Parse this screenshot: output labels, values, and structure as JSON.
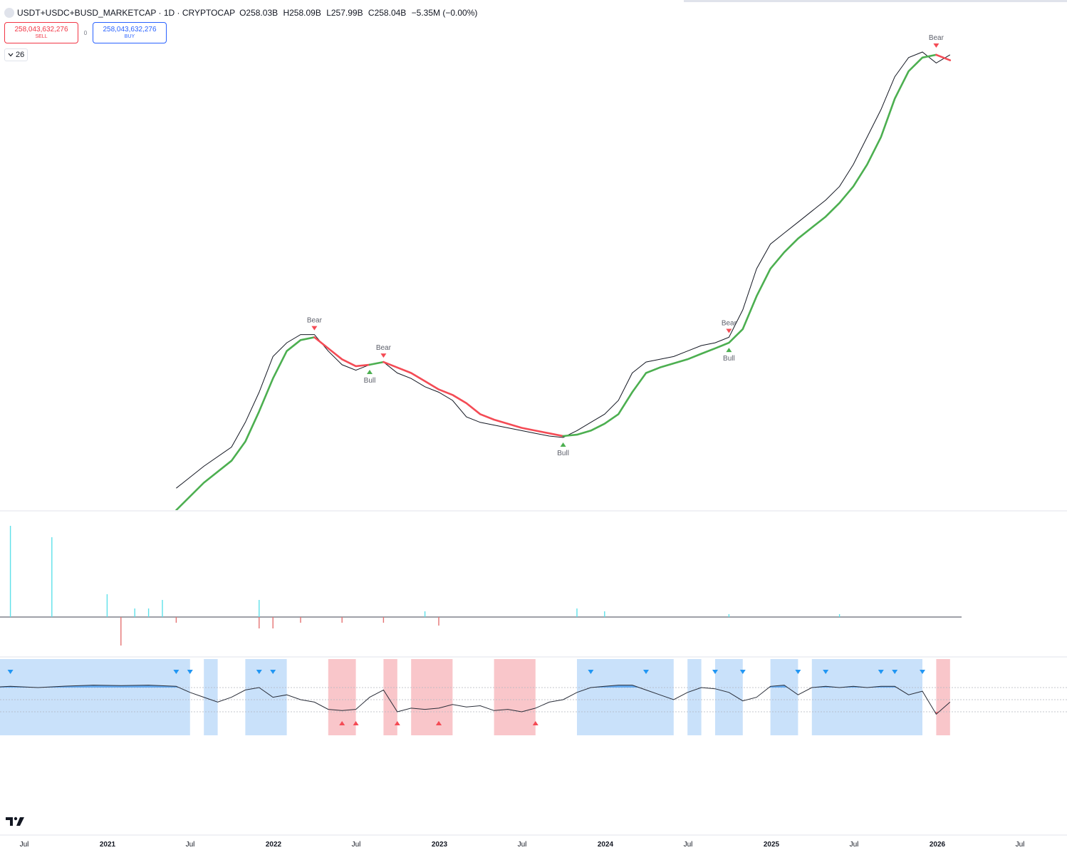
{
  "header": {
    "symbol": "USDT+USDC+BUSD_MARKETCAP · 1D · CRYPTOCAP",
    "open": "O258.03B",
    "high": "H258.09B",
    "low": "L257.99B",
    "close": "C258.04B",
    "change": "−5.35M (−0.00%)"
  },
  "trade": {
    "sell_price": "258,043,632,276",
    "sell_label": "SELL",
    "spread": "0",
    "buy_price": "258,043,632,276",
    "buy_label": "BUY"
  },
  "indicators_toggle": {
    "count": "26",
    "icon": "chevron-down-icon"
  },
  "logo": {
    "icon": "tradingview-logo"
  },
  "colors": {
    "bull": "#4caf50",
    "bear": "#f44b55",
    "price": "#131722",
    "osc_blue_bg": "#c9e1fa",
    "osc_red_bg": "#f9c6ca",
    "osc_blue_fill": "#64a9ee",
    "osc_red_fill": "#f07c85",
    "volume_up": "#5ee0ea",
    "volume_down": "#e57373"
  },
  "chart_data": [
    {
      "type": "line",
      "panel": "main",
      "x_axis_labels": [
        "Jul",
        "2021",
        "Jul",
        "2022",
        "Jul",
        "2023",
        "Jul",
        "2024",
        "Jul",
        "2025",
        "Jul",
        "2026",
        "Jul"
      ],
      "series": [
        {
          "role": "price",
          "points": [
            [
              "2021-06",
              100
            ],
            [
              "2021-08",
              108
            ],
            [
              "2021-10",
              115
            ],
            [
              "2021-11",
              124
            ],
            [
              "2021-12",
              135
            ],
            [
              "2022-01",
              148
            ],
            [
              "2022-02",
              153
            ],
            [
              "2022-03",
              156
            ],
            [
              "2022-04",
              156
            ],
            [
              "2022-05",
              150
            ],
            [
              "2022-06",
              145
            ],
            [
              "2022-07",
              143
            ],
            [
              "2022-08",
              145
            ],
            [
              "2022-09",
              146
            ],
            [
              "2022-10",
              142
            ],
            [
              "2022-11",
              140
            ],
            [
              "2022-12",
              137
            ],
            [
              "2023-01",
              135
            ],
            [
              "2023-02",
              132
            ],
            [
              "2023-03",
              126
            ],
            [
              "2023-04",
              124
            ],
            [
              "2023-05",
              123
            ],
            [
              "2023-06",
              122
            ],
            [
              "2023-07",
              121
            ],
            [
              "2023-08",
              120
            ],
            [
              "2023-09",
              119
            ],
            [
              "2023-10",
              118.5
            ],
            [
              "2023-11",
              121
            ],
            [
              "2023-12",
              124
            ],
            [
              "2024-01",
              127
            ],
            [
              "2024-02",
              132
            ],
            [
              "2024-03",
              142
            ],
            [
              "2024-04",
              146
            ],
            [
              "2024-05",
              147
            ],
            [
              "2024-06",
              148
            ],
            [
              "2024-07",
              150
            ],
            [
              "2024-08",
              152
            ],
            [
              "2024-09",
              153
            ],
            [
              "2024-10",
              155
            ],
            [
              "2024-11",
              165
            ],
            [
              "2024-12",
              180
            ],
            [
              "2025-01",
              189
            ],
            [
              "2025-02",
              193
            ],
            [
              "2025-03",
              197
            ],
            [
              "2025-04",
              201
            ],
            [
              "2025-05",
              205
            ],
            [
              "2025-06",
              210
            ],
            [
              "2025-07",
              218
            ],
            [
              "2025-08",
              228
            ],
            [
              "2025-09",
              238
            ],
            [
              "2025-10",
              250
            ],
            [
              "2025-11",
              257
            ],
            [
              "2025-12",
              259
            ],
            [
              "2026-01",
              255
            ],
            [
              "2026-02",
              258
            ]
          ]
        },
        {
          "role": "trend",
          "segments": [
            {
              "trend": "bull",
              "points": [
                [
                  "2021-06",
                  92
                ],
                [
                  "2021-08",
                  102
                ],
                [
                  "2021-10",
                  110
                ],
                [
                  "2021-11",
                  117
                ],
                [
                  "2021-12",
                  128
                ],
                [
                  "2022-01",
                  140
                ],
                [
                  "2022-02",
                  150
                ],
                [
                  "2022-03",
                  154
                ],
                [
                  "2022-04",
                  155
                ]
              ]
            },
            {
              "trend": "bear",
              "points": [
                [
                  "2022-04",
                  155
                ],
                [
                  "2022-05",
                  151
                ],
                [
                  "2022-06",
                  147
                ],
                [
                  "2022-07",
                  144.5
                ],
                [
                  "2022-08",
                  145
                ]
              ]
            },
            {
              "trend": "bull",
              "points": [
                [
                  "2022-08",
                  145
                ],
                [
                  "2022-09",
                  146
                ]
              ]
            },
            {
              "trend": "bear",
              "points": [
                [
                  "2022-09",
                  146
                ],
                [
                  "2022-10",
                  144
                ],
                [
                  "2022-11",
                  142
                ],
                [
                  "2022-12",
                  139
                ],
                [
                  "2023-01",
                  136
                ],
                [
                  "2023-02",
                  134
                ],
                [
                  "2023-03",
                  131
                ],
                [
                  "2023-04",
                  127
                ],
                [
                  "2023-05",
                  125
                ],
                [
                  "2023-06",
                  123.5
                ],
                [
                  "2023-07",
                  122
                ],
                [
                  "2023-08",
                  121
                ],
                [
                  "2023-09",
                  120
                ],
                [
                  "2023-10",
                  119
                ]
              ]
            },
            {
              "trend": "bull",
              "points": [
                [
                  "2023-10",
                  119
                ],
                [
                  "2023-11",
                  119.5
                ],
                [
                  "2023-12",
                  121
                ],
                [
                  "2024-01",
                  123.5
                ],
                [
                  "2024-02",
                  127
                ],
                [
                  "2024-03",
                  135
                ],
                [
                  "2024-04",
                  142
                ],
                [
                  "2024-05",
                  144
                ],
                [
                  "2024-06",
                  145.5
                ],
                [
                  "2024-07",
                  147
                ],
                [
                  "2024-08",
                  149
                ],
                [
                  "2024-09",
                  151
                ],
                [
                  "2024-10",
                  153
                ],
                [
                  "2024-11",
                  158
                ],
                [
                  "2024-12",
                  170
                ],
                [
                  "2025-01",
                  180
                ],
                [
                  "2025-02",
                  186
                ],
                [
                  "2025-03",
                  191
                ],
                [
                  "2025-04",
                  195
                ],
                [
                  "2025-05",
                  199
                ],
                [
                  "2025-06",
                  204
                ],
                [
                  "2025-07",
                  210
                ],
                [
                  "2025-08",
                  218
                ],
                [
                  "2025-09",
                  228
                ],
                [
                  "2025-10",
                  242
                ],
                [
                  "2025-11",
                  252
                ],
                [
                  "2025-12",
                  257
                ],
                [
                  "2026-01",
                  258
                ]
              ]
            },
            {
              "trend": "bear",
              "points": [
                [
                  "2026-01",
                  258
                ],
                [
                  "2026-02",
                  256
                ]
              ]
            }
          ]
        }
      ],
      "annotations": [
        {
          "label": "Bear",
          "x": "2022-04",
          "y": 156,
          "kind": "bear"
        },
        {
          "label": "Bull",
          "x": "2022-08",
          "y": 145,
          "kind": "bull"
        },
        {
          "label": "Bear",
          "x": "2022-09",
          "y": 146,
          "kind": "bear"
        },
        {
          "label": "Bull",
          "x": "2023-10",
          "y": 118.5,
          "kind": "bull"
        },
        {
          "label": "Bear",
          "x": "2024-10",
          "y": 155,
          "kind": "bear"
        },
        {
          "label": "Bull",
          "x": "2024-10",
          "y": 153,
          "kind": "bull"
        },
        {
          "label": "Bear",
          "x": "2026-01",
          "y": 259,
          "kind": "bear"
        }
      ]
    },
    {
      "type": "bar",
      "panel": "volume",
      "baseline": 0,
      "spikes": [
        [
          "2020-06",
          16,
          "up"
        ],
        [
          "2020-09",
          14,
          "up"
        ],
        [
          "2021-01",
          4,
          "up"
        ],
        [
          "2021-02",
          -5,
          "down"
        ],
        [
          "2021-03",
          1.5,
          "up"
        ],
        [
          "2021-04",
          1.5,
          "up"
        ],
        [
          "2021-05",
          3,
          "up"
        ],
        [
          "2021-06",
          -1,
          "down"
        ],
        [
          "2021-12",
          3,
          "up"
        ],
        [
          "2021-12",
          -2,
          "down"
        ],
        [
          "2022-01",
          -2,
          "down"
        ],
        [
          "2022-03",
          -1,
          "down"
        ],
        [
          "2022-06",
          -1,
          "down"
        ],
        [
          "2022-09",
          -1,
          "down"
        ],
        [
          "2022-12",
          1,
          "up"
        ],
        [
          "2023-01",
          -1.5,
          "down"
        ],
        [
          "2023-11",
          1.5,
          "up"
        ],
        [
          "2024-01",
          1,
          "up"
        ],
        [
          "2024-10",
          0.5,
          "up"
        ],
        [
          "2025-06",
          0.5,
          "up"
        ]
      ]
    },
    {
      "type": "area",
      "panel": "oscillator",
      "ylim": [
        -1,
        1
      ],
      "levels": [
        0.5,
        0,
        -0.5
      ],
      "zones": [
        [
          "2020-04",
          "2021-07",
          "blue"
        ],
        [
          "2021-08",
          "2021-09",
          "blue"
        ],
        [
          "2021-11",
          "2022-02",
          "blue"
        ],
        [
          "2022-05",
          "2022-07",
          "red"
        ],
        [
          "2022-09",
          "2022-10",
          "red"
        ],
        [
          "2022-11",
          "2023-02",
          "red"
        ],
        [
          "2023-05",
          "2023-08",
          "red"
        ],
        [
          "2023-11",
          "2024-06",
          "blue"
        ],
        [
          "2024-07",
          "2024-08",
          "blue"
        ],
        [
          "2024-09",
          "2024-11",
          "blue"
        ],
        [
          "2025-01",
          "2025-03",
          "blue"
        ],
        [
          "2025-04",
          "2025-12",
          "blue"
        ],
        [
          "2026-01",
          "2026-02",
          "red"
        ]
      ],
      "values": [
        [
          "2020-04",
          0.5
        ],
        [
          "2020-06",
          0.55
        ],
        [
          "2020-08",
          0.5
        ],
        [
          "2020-10",
          0.56
        ],
        [
          "2020-12",
          0.6
        ],
        [
          "2021-02",
          0.58
        ],
        [
          "2021-04",
          0.6
        ],
        [
          "2021-06",
          0.55
        ],
        [
          "2021-07",
          0.3
        ],
        [
          "2021-08",
          0.1
        ],
        [
          "2021-09",
          -0.1
        ],
        [
          "2021-10",
          0.1
        ],
        [
          "2021-11",
          0.4
        ],
        [
          "2021-12",
          0.5
        ],
        [
          "2022-01",
          0.1
        ],
        [
          "2022-02",
          0.2
        ],
        [
          "2022-03",
          0.0
        ],
        [
          "2022-04",
          -0.1
        ],
        [
          "2022-05",
          -0.4
        ],
        [
          "2022-06",
          -0.45
        ],
        [
          "2022-07",
          -0.4
        ],
        [
          "2022-08",
          0.1
        ],
        [
          "2022-09",
          0.4
        ],
        [
          "2022-10",
          -0.5
        ],
        [
          "2022-11",
          -0.35
        ],
        [
          "2022-12",
          -0.4
        ],
        [
          "2023-01",
          -0.35
        ],
        [
          "2023-02",
          -0.2
        ],
        [
          "2023-03",
          -0.3
        ],
        [
          "2023-04",
          -0.25
        ],
        [
          "2023-05",
          -0.45
        ],
        [
          "2023-06",
          -0.4
        ],
        [
          "2023-07",
          -0.5
        ],
        [
          "2023-08",
          -0.35
        ],
        [
          "2023-09",
          -0.1
        ],
        [
          "2023-10",
          0.0
        ],
        [
          "2023-11",
          0.3
        ],
        [
          "2023-12",
          0.5
        ],
        [
          "2024-01",
          0.55
        ],
        [
          "2024-02",
          0.6
        ],
        [
          "2024-03",
          0.6
        ],
        [
          "2024-04",
          0.4
        ],
        [
          "2024-05",
          0.2
        ],
        [
          "2024-06",
          0.0
        ],
        [
          "2024-07",
          0.3
        ],
        [
          "2024-08",
          0.5
        ],
        [
          "2024-09",
          0.45
        ],
        [
          "2024-10",
          0.3
        ],
        [
          "2024-11",
          -0.05
        ],
        [
          "2024-12",
          0.1
        ],
        [
          "2025-01",
          0.55
        ],
        [
          "2025-02",
          0.6
        ],
        [
          "2025-03",
          0.2
        ],
        [
          "2025-04",
          0.5
        ],
        [
          "2025-05",
          0.55
        ],
        [
          "2025-06",
          0.5
        ],
        [
          "2025-07",
          0.55
        ],
        [
          "2025-08",
          0.5
        ],
        [
          "2025-09",
          0.55
        ],
        [
          "2025-10",
          0.55
        ],
        [
          "2025-11",
          0.2
        ],
        [
          "2025-12",
          0.35
        ],
        [
          "2026-01",
          -0.6
        ],
        [
          "2026-02",
          -0.1
        ]
      ],
      "signals": [
        [
          "2020-06",
          "down"
        ],
        [
          "2021-06",
          "down"
        ],
        [
          "2021-07",
          "down"
        ],
        [
          "2021-12",
          "down"
        ],
        [
          "2022-01",
          "down"
        ],
        [
          "2022-06",
          "up"
        ],
        [
          "2022-07",
          "up"
        ],
        [
          "2022-10",
          "up"
        ],
        [
          "2023-01",
          "up"
        ],
        [
          "2023-01",
          "up"
        ],
        [
          "2023-08",
          "up"
        ],
        [
          "2023-12",
          "down"
        ],
        [
          "2024-04",
          "down"
        ],
        [
          "2024-09",
          "down"
        ],
        [
          "2024-11",
          "down"
        ],
        [
          "2025-03",
          "down"
        ],
        [
          "2025-05",
          "down"
        ],
        [
          "2025-09",
          "down"
        ],
        [
          "2025-10",
          "down"
        ],
        [
          "2025-12",
          "down"
        ]
      ]
    }
  ]
}
